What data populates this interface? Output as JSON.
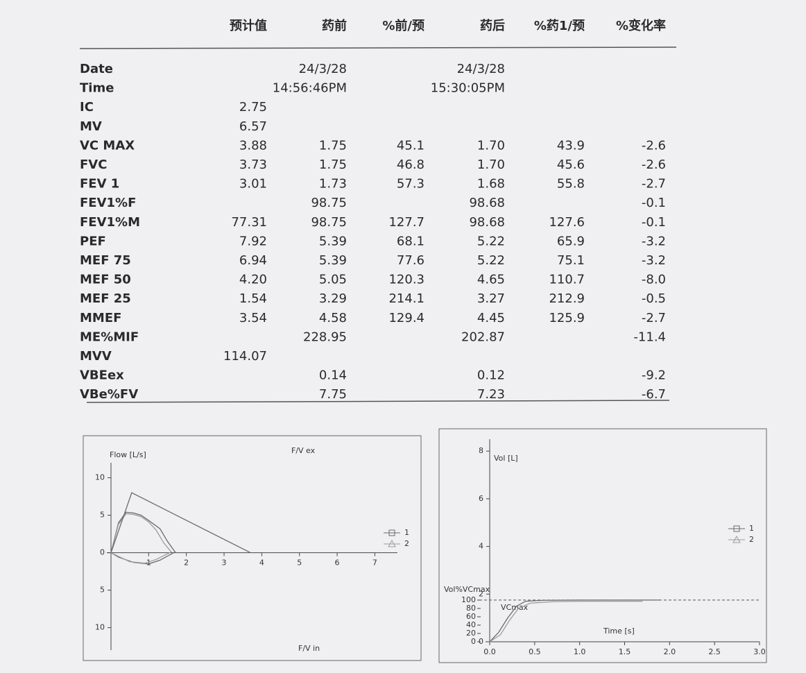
{
  "table": {
    "header": [
      "预计值",
      "药前",
      "%前/预",
      "药后",
      "%药1/预",
      "%变化率"
    ],
    "rows": [
      [
        "Date",
        null,
        "24/3/28",
        null,
        "24/3/28",
        null,
        null
      ],
      [
        "Time",
        null,
        "14:56:46PM",
        null,
        "15:30:05PM",
        null,
        null
      ],
      [
        "IC",
        "2.75",
        null,
        null,
        null,
        null,
        null
      ],
      [
        "MV",
        "6.57",
        null,
        null,
        null,
        null,
        null
      ],
      [
        "VC MAX",
        "3.88",
        "1.75",
        "45.1",
        "1.70",
        "43.9",
        "-2.6"
      ],
      [
        "FVC",
        "3.73",
        "1.75",
        "46.8",
        "1.70",
        "45.6",
        "-2.6"
      ],
      [
        "FEV 1",
        "3.01",
        "1.73",
        "57.3",
        "1.68",
        "55.8",
        "-2.7"
      ],
      [
        "FEV1%F",
        null,
        "98.75",
        null,
        "98.68",
        null,
        "-0.1"
      ],
      [
        "FEV1%M",
        "77.31",
        "98.75",
        "127.7",
        "98.68",
        "127.6",
        "-0.1"
      ],
      [
        "PEF",
        "7.92",
        "5.39",
        "68.1",
        "5.22",
        "65.9",
        "-3.2"
      ],
      [
        "MEF 75",
        "6.94",
        "5.39",
        "77.6",
        "5.22",
        "75.1",
        "-3.2"
      ],
      [
        "MEF 50",
        "4.20",
        "5.05",
        "120.3",
        "4.65",
        "110.7",
        "-8.0"
      ],
      [
        "MEF 25",
        "1.54",
        "3.29",
        "214.1",
        "3.27",
        "212.9",
        "-0.5"
      ],
      [
        "MMEF",
        "3.54",
        "4.58",
        "129.4",
        "4.45",
        "125.9",
        "-2.7"
      ],
      [
        "ME%MIF",
        null,
        "228.95",
        null,
        "202.87",
        null,
        "-11.4"
      ],
      [
        "MVV",
        "114.07",
        null,
        null,
        null,
        null,
        null
      ],
      [
        "VBEex",
        null,
        "0.14",
        null,
        "0.12",
        null,
        "-9.2"
      ],
      [
        "VBe%FV",
        null,
        "7.75",
        null,
        "7.23",
        null,
        "-6.7"
      ]
    ]
  },
  "charts": [
    {
      "type": "line",
      "ylabel": "Flow [L/s]",
      "annotations": [
        "F/V ex",
        "F/V in"
      ],
      "xlim": [
        0,
        7.6
      ],
      "ylim": [
        -13,
        12
      ],
      "xticks": [
        1,
        2,
        3,
        4,
        5,
        6,
        7
      ],
      "yticks": [
        {
          "value": -10,
          "label": "10"
        },
        {
          "value": -5,
          "label": "5"
        },
        0,
        5,
        10
      ],
      "series": [
        {
          "name": "1",
          "color": "#6a6a6a",
          "marker": "square",
          "x": [
            0,
            0.2,
            0.4,
            0.6,
            0.8,
            1.0,
            1.3,
            1.5,
            1.7,
            1.3,
            1.0,
            0.6,
            0.2,
            0
          ],
          "values": [
            0,
            4,
            5.4,
            5.3,
            5,
            4.3,
            3.2,
            1.5,
            0.1,
            -1,
            -1.5,
            -1.3,
            -0.6,
            0
          ]
        },
        {
          "name": "2",
          "color": "#9a9a9a",
          "marker": "triangle",
          "x": [
            0,
            0.2,
            0.4,
            0.6,
            0.8,
            1.0,
            1.2,
            1.4,
            1.6,
            1.2,
            0.9,
            0.5,
            0.2,
            0
          ],
          "values": [
            0,
            3.8,
            5.2,
            5.1,
            4.8,
            4.1,
            3,
            1.3,
            0.1,
            -0.9,
            -1.4,
            -1.2,
            -0.5,
            0
          ]
        },
        {
          "color": "#6a6a6a",
          "x": [
            0,
            0.55,
            3.7
          ],
          "values": [
            0,
            8,
            0
          ]
        }
      ]
    },
    {
      "type": "line",
      "ylabel": "Vol [L]",
      "y2label": "Vol%VCmax",
      "xlabel": "Time [s]",
      "annotations": [
        "VCmax"
      ],
      "xlim": [
        0,
        3
      ],
      "ylim": [
        0,
        8.5
      ],
      "y2lim": [
        0,
        486
      ],
      "xticks": [
        {
          "value": 0,
          "label": "0.0"
        },
        0.5,
        {
          "value": 1,
          "label": "1.0"
        },
        1.5,
        {
          "value": 2,
          "label": "2.0"
        },
        2.5,
        {
          "value": 3,
          "label": "3.0"
        }
      ],
      "yticks": [
        0,
        2,
        4,
        6,
        8
      ],
      "y2ticks": [
        0,
        20,
        40,
        60,
        80,
        100
      ],
      "series": [
        {
          "name": "1",
          "color": "#6a6a6a",
          "marker": "square",
          "x": [
            0,
            0.1,
            0.2,
            0.3,
            0.4,
            0.6,
            1.0,
            1.5,
            1.9
          ],
          "values": [
            0,
            0.4,
            1.0,
            1.5,
            1.7,
            1.74,
            1.75,
            1.75,
            1.75
          ]
        },
        {
          "name": "2",
          "color": "#9a9a9a",
          "marker": "triangle",
          "x": [
            0,
            0.12,
            0.22,
            0.32,
            0.45,
            0.7,
            1.0,
            1.4,
            1.7
          ],
          "values": [
            0,
            0.3,
            0.9,
            1.4,
            1.62,
            1.68,
            1.7,
            1.7,
            1.7
          ]
        }
      ]
    }
  ]
}
